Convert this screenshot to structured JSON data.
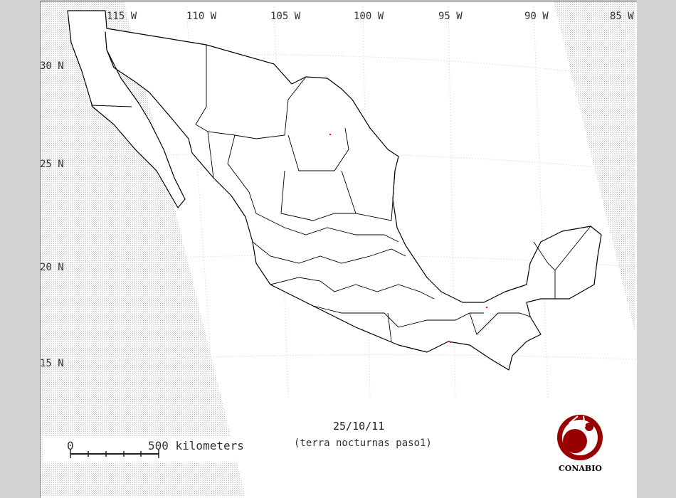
{
  "map": {
    "longitude_labels": [
      "115 W",
      "110 W",
      "105 W",
      "100 W",
      "95 W",
      "90 W",
      "85 W"
    ],
    "latitude_labels": [
      "30 N",
      "25 N",
      "20 N",
      "15 N"
    ],
    "date": "25/10/11",
    "subtitle": "(terra nocturnas paso1)",
    "scale_bar": {
      "start_label": "0",
      "end_label": "500 kilometers"
    },
    "logo_text": "CONABIO",
    "colors": {
      "fire_point": "#ff0000",
      "logo": "#990000",
      "outline": "#000000",
      "no_data_hatch": "#cfcfcf"
    },
    "fire_points_count_visible": 3
  }
}
